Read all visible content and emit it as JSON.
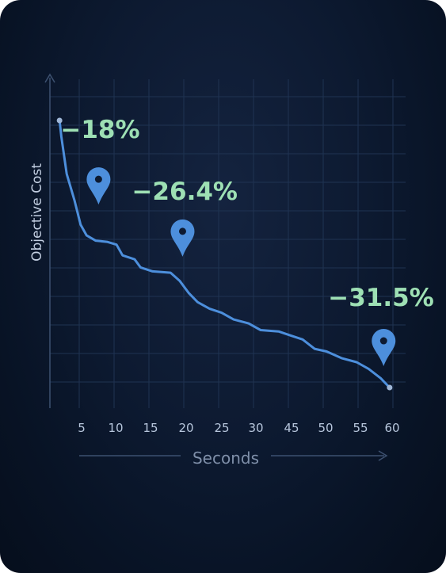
{
  "chart_data": {
    "type": "line",
    "title": "",
    "xlabel": "Seconds",
    "ylabel": "Objective Cost",
    "xlim": [
      2,
      61
    ],
    "ylim": [
      0,
      100
    ],
    "x_ticks": [
      5,
      10,
      15,
      20,
      25,
      30,
      45,
      50,
      55,
      60
    ],
    "x_tick_labels": [
      "5",
      "10",
      "15",
      "20",
      "25",
      "30",
      "45",
      "50",
      "55",
      "60"
    ],
    "grid": true,
    "series": [
      {
        "values": [
          {
            "x": 4,
            "y": 100
          },
          {
            "x": 4.3,
            "y": 94
          },
          {
            "x": 5.2,
            "y": 80
          },
          {
            "x": 6.5,
            "y": 70
          },
          {
            "x": 7.5,
            "y": 61
          },
          {
            "x": 8.5,
            "y": 57
          },
          {
            "x": 10,
            "y": 55
          },
          {
            "x": 12,
            "y": 54.5
          },
          {
            "x": 13.5,
            "y": 53.5
          },
          {
            "x": 14.5,
            "y": 49.5
          },
          {
            "x": 16.5,
            "y": 48
          },
          {
            "x": 17.5,
            "y": 45
          },
          {
            "x": 19.5,
            "y": 43.5
          },
          {
            "x": 22.5,
            "y": 43
          },
          {
            "x": 24,
            "y": 40
          },
          {
            "x": 25.5,
            "y": 35.5
          },
          {
            "x": 27,
            "y": 32
          },
          {
            "x": 29,
            "y": 29.5
          },
          {
            "x": 31,
            "y": 28
          },
          {
            "x": 33,
            "y": 25.5
          },
          {
            "x": 35.5,
            "y": 24
          },
          {
            "x": 37.5,
            "y": 21.5
          },
          {
            "x": 40.5,
            "y": 21
          },
          {
            "x": 42.5,
            "y": 19.5
          },
          {
            "x": 44.5,
            "y": 18
          },
          {
            "x": 46.5,
            "y": 14.5
          },
          {
            "x": 48.5,
            "y": 13.5
          },
          {
            "x": 51,
            "y": 11
          },
          {
            "x": 53.5,
            "y": 9.5
          },
          {
            "x": 55.5,
            "y": 7
          },
          {
            "x": 57.5,
            "y": 3.5
          },
          {
            "x": 59,
            "y": 0
          }
        ]
      }
    ],
    "annotations": [
      {
        "text": "−18%",
        "x": 10.5,
        "y": 68.5
      },
      {
        "text": "−26.4%",
        "x": 24.5,
        "y": 49
      },
      {
        "text": "−31.5%",
        "x": 58,
        "y": 8
      }
    ],
    "colors": {
      "line": "#4d8fdc",
      "marker": "#4d8fdc",
      "annotation_text": "#9ee0b4",
      "grid": "#1f3352"
    }
  }
}
